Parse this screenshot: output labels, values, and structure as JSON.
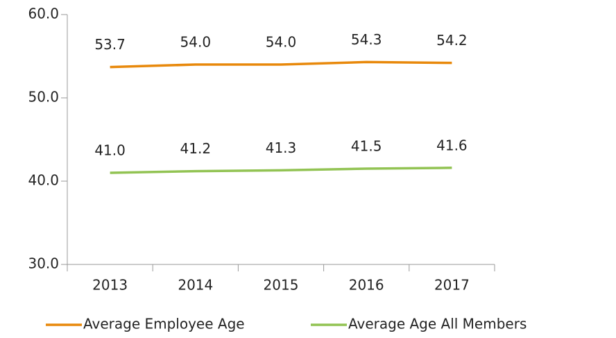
{
  "chart_data": {
    "type": "line",
    "categories": [
      "2013",
      "2014",
      "2015",
      "2016",
      "2017"
    ],
    "series": [
      {
        "name": "Average Employee Age",
        "color": "#e8890c",
        "values": [
          53.7,
          54.0,
          54.0,
          54.3,
          54.2
        ],
        "value_labels": [
          "53.7",
          "54.0",
          "54.0",
          "54.3",
          "54.2"
        ]
      },
      {
        "name": "Average Age All Members",
        "color": "#92c353",
        "values": [
          41.0,
          41.2,
          41.3,
          41.5,
          41.6
        ],
        "value_labels": [
          "41.0",
          "41.2",
          "41.3",
          "41.5",
          "41.6"
        ]
      }
    ],
    "ylim": [
      30,
      60
    ],
    "yticks": [
      {
        "value": 30,
        "label": "30.0"
      },
      {
        "value": 40,
        "label": "40.0"
      },
      {
        "value": 50,
        "label": "50.0"
      },
      {
        "value": 60,
        "label": "60.0"
      }
    ],
    "grid": false,
    "legend": "bottom"
  }
}
